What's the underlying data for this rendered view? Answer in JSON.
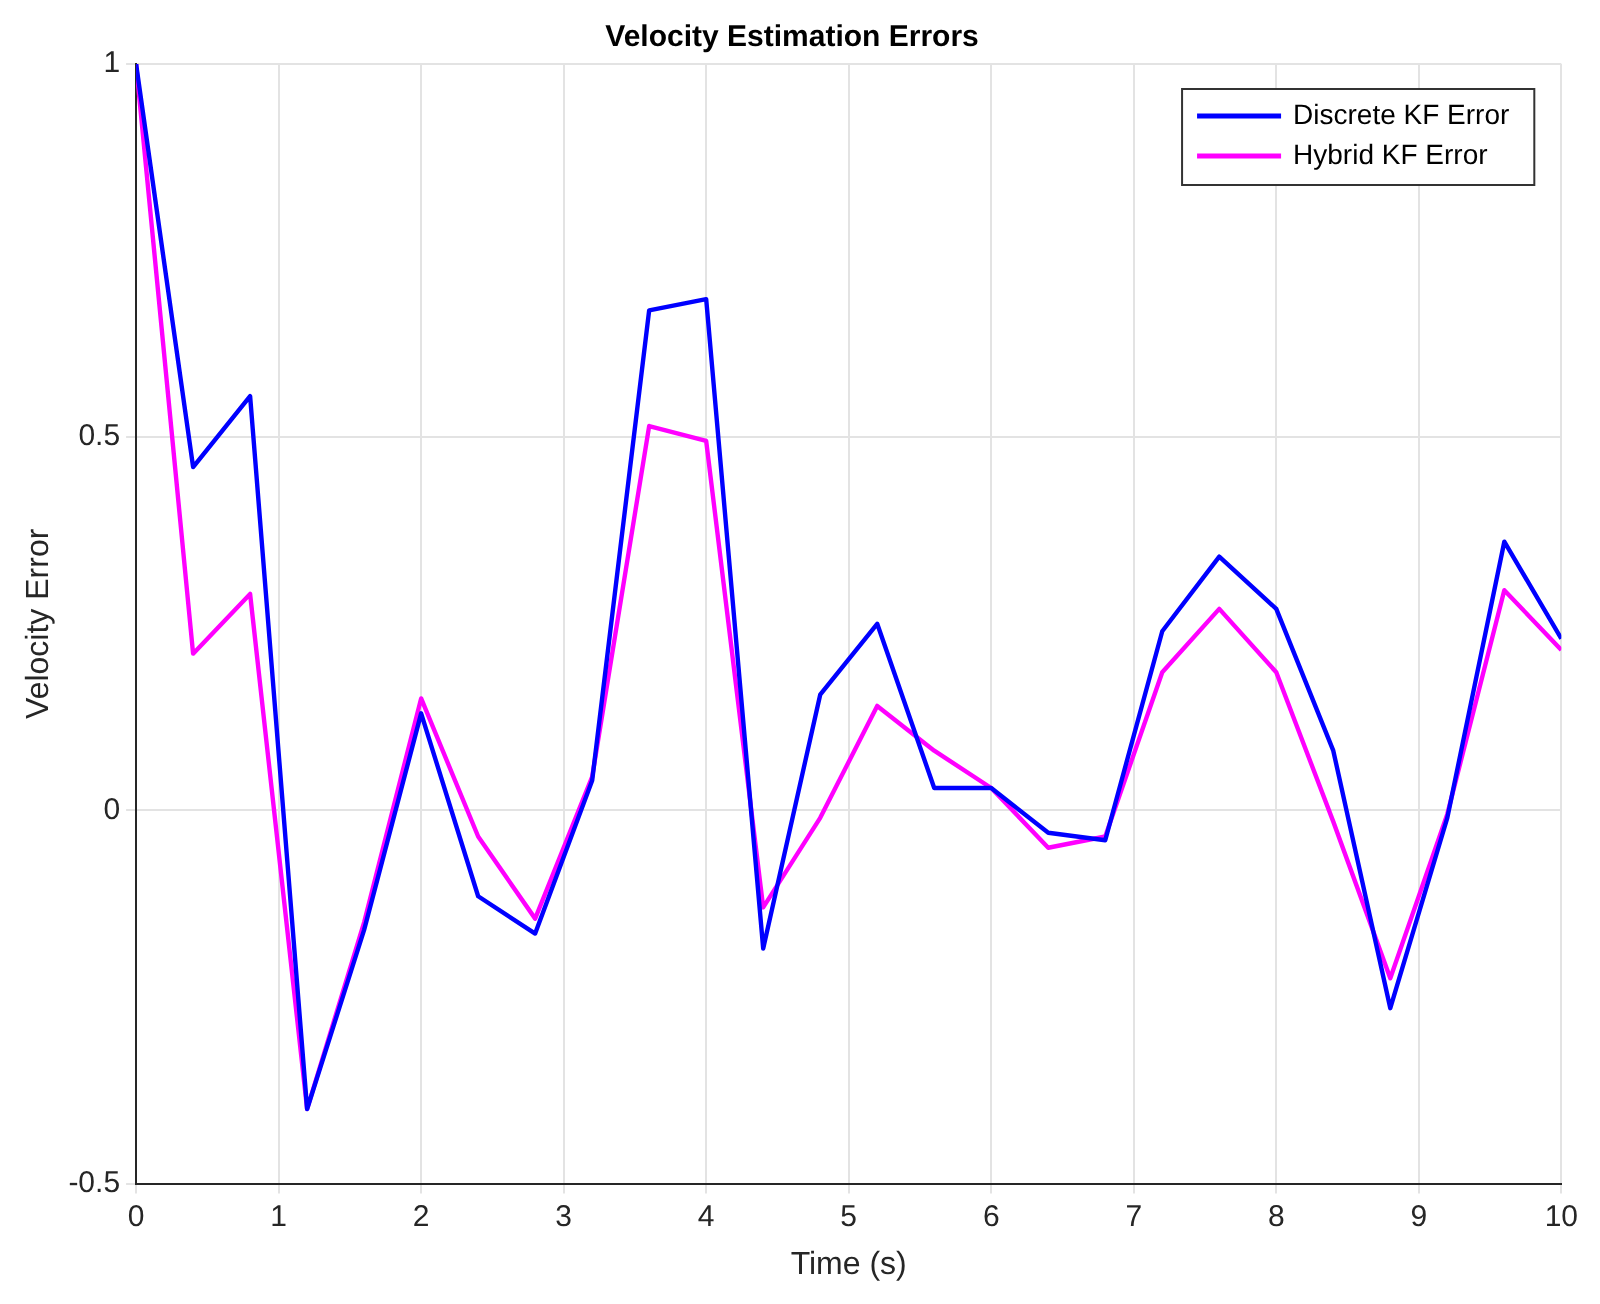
{
  "chart_data": {
    "type": "line",
    "title": "Velocity Estimation Errors",
    "xlabel": "Time (s)",
    "ylabel": "Velocity Error",
    "x": [
      0,
      0.4,
      0.8,
      1.2,
      1.6,
      2,
      2.4,
      2.8,
      3.2,
      3.6,
      4,
      4.4,
      4.8,
      5.2,
      5.6,
      6,
      6.4,
      6.8,
      7.2,
      7.6,
      8,
      8.4,
      8.8,
      9.2,
      9.6,
      10
    ],
    "series": [
      {
        "name": "Discrete KF Error",
        "color": "#0000ff",
        "values": [
          1,
          0.46,
          0.555,
          -0.4,
          -0.16,
          0.13,
          -0.115,
          -0.165,
          0.04,
          0.67,
          0.685,
          -0.185,
          0.155,
          0.25,
          0.03,
          0.03,
          -0.03,
          -0.04,
          0.24,
          0.34,
          0.27,
          0.08,
          -0.265,
          -0.01,
          0.36,
          0.23
        ]
      },
      {
        "name": "Hybrid KF Error",
        "color": "#ff00ff",
        "values": [
          1,
          0.21,
          0.29,
          -0.4,
          -0.15,
          0.15,
          -0.035,
          -0.145,
          0.045,
          0.515,
          0.495,
          -0.13,
          -0.01,
          0.14,
          0.08,
          0.03,
          -0.05,
          -0.035,
          0.185,
          0.27,
          0.185,
          -0.015,
          -0.225,
          -0.005,
          0.295,
          0.215
        ]
      }
    ],
    "xlim": [
      0,
      10
    ],
    "xticks": [
      0,
      1,
      2,
      3,
      4,
      5,
      6,
      7,
      8,
      9,
      10
    ],
    "ylim": [
      -0.5,
      1
    ],
    "yticks": [
      -0.5,
      0,
      0.5,
      1
    ],
    "grid": true,
    "legend": "top right",
    "marker": "none",
    "line_style": "solid"
  }
}
